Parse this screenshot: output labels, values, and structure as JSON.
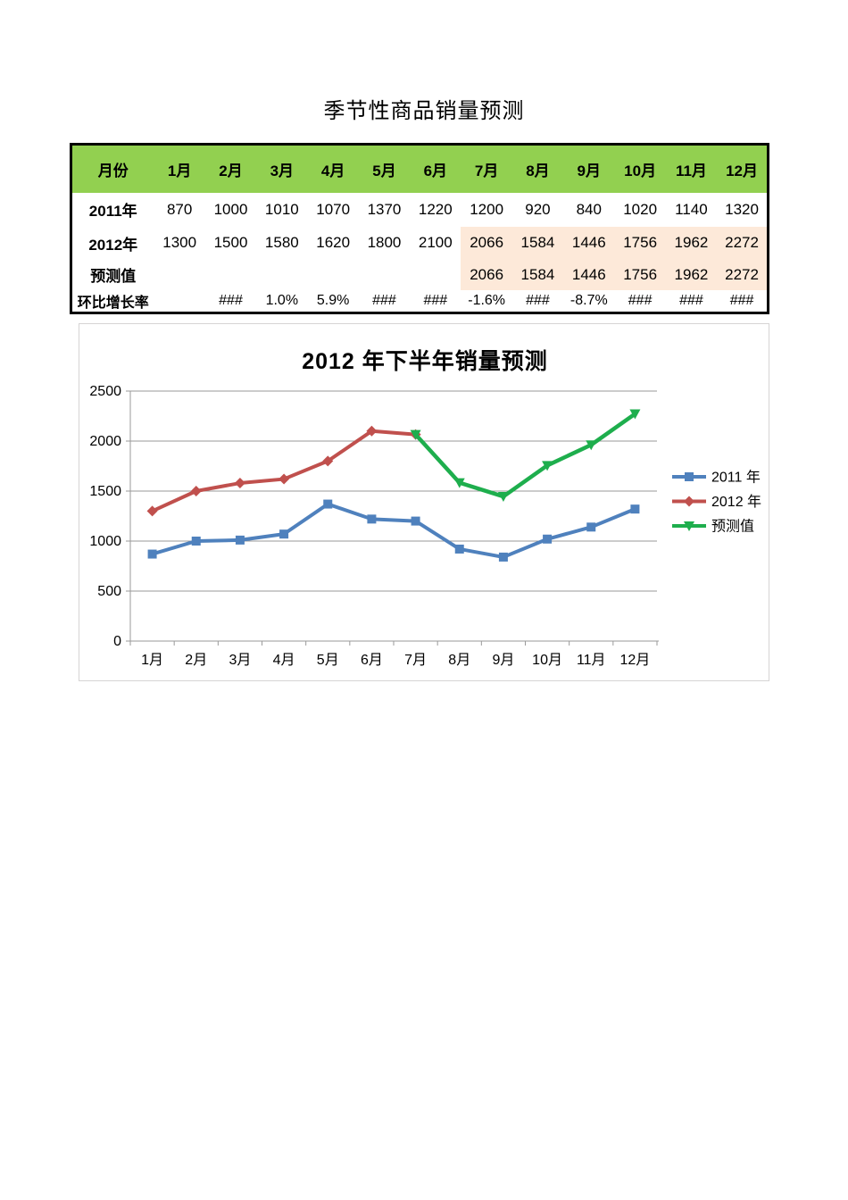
{
  "page": {
    "title": "季节性商品销量预测"
  },
  "table": {
    "header": [
      "月份",
      "1月",
      "2月",
      "3月",
      "4月",
      "5月",
      "6月",
      "7月",
      "8月",
      "9月",
      "10月",
      "11月",
      "12月"
    ],
    "rows": [
      {
        "label": "2011年",
        "values": [
          "870",
          "1000",
          "1010",
          "1070",
          "1370",
          "1220",
          "1200",
          "920",
          "840",
          "1020",
          "1140",
          "1320"
        ],
        "highlight_from": null
      },
      {
        "label": "2012年",
        "values": [
          "1300",
          "1500",
          "1580",
          "1620",
          "1800",
          "2100",
          "2066",
          "1584",
          "1446",
          "1756",
          "1962",
          "2272"
        ],
        "highlight_from": 6
      },
      {
        "label": "预测值",
        "values": [
          "",
          "",
          "",
          "",
          "",
          "",
          "2066",
          "1584",
          "1446",
          "1756",
          "1962",
          "2272"
        ],
        "highlight_from": 6
      },
      {
        "label": "环比增长率",
        "values": [
          "",
          "###",
          "1.0%",
          "5.9%",
          "###",
          "###",
          "-1.6%",
          "###",
          "-8.7%",
          "###",
          "###",
          "###"
        ],
        "highlight_from": null
      }
    ],
    "colors": {
      "header_bg": "#92D050",
      "highlight_bg": "#FDE9D9",
      "border": "#000000"
    }
  },
  "chart": {
    "title": "2012 年下半年销量预测",
    "legend": [
      {
        "label": "2011 年",
        "color": "#4F81BD",
        "marker": "square"
      },
      {
        "label": "2012 年",
        "color": "#C0504D",
        "marker": "diamond"
      },
      {
        "label": "预测值",
        "color": "#1EAE4D",
        "marker": "triangle-down"
      }
    ],
    "axis_color": "#9a9a9a",
    "grid_color": "#9a9a9a",
    "tick_label_color": "#000000"
  },
  "chart_data": {
    "type": "line",
    "title": "2012 年下半年销量预测",
    "categories": [
      "1月",
      "2月",
      "3月",
      "4月",
      "5月",
      "6月",
      "7月",
      "8月",
      "9月",
      "10月",
      "11月",
      "12月"
    ],
    "series": [
      {
        "name": "2011 年",
        "color": "#4F81BD",
        "marker": "square",
        "values": [
          870,
          1000,
          1010,
          1070,
          1370,
          1220,
          1200,
          920,
          840,
          1020,
          1140,
          1320
        ]
      },
      {
        "name": "2012 年",
        "color": "#C0504D",
        "marker": "diamond",
        "values": [
          1300,
          1500,
          1580,
          1620,
          1800,
          2100,
          2066,
          null,
          null,
          null,
          null,
          null
        ]
      },
      {
        "name": "预测值",
        "color": "#1EAE4D",
        "marker": "triangle-down",
        "values": [
          null,
          null,
          null,
          null,
          null,
          null,
          2066,
          1584,
          1446,
          1756,
          1962,
          2272
        ]
      }
    ],
    "xlabel": "",
    "ylabel": "",
    "ylim": [
      0,
      2500
    ],
    "yticks": [
      0,
      500,
      1000,
      1500,
      2000,
      2500
    ],
    "grid": "horizontal",
    "legend_position": "right"
  }
}
